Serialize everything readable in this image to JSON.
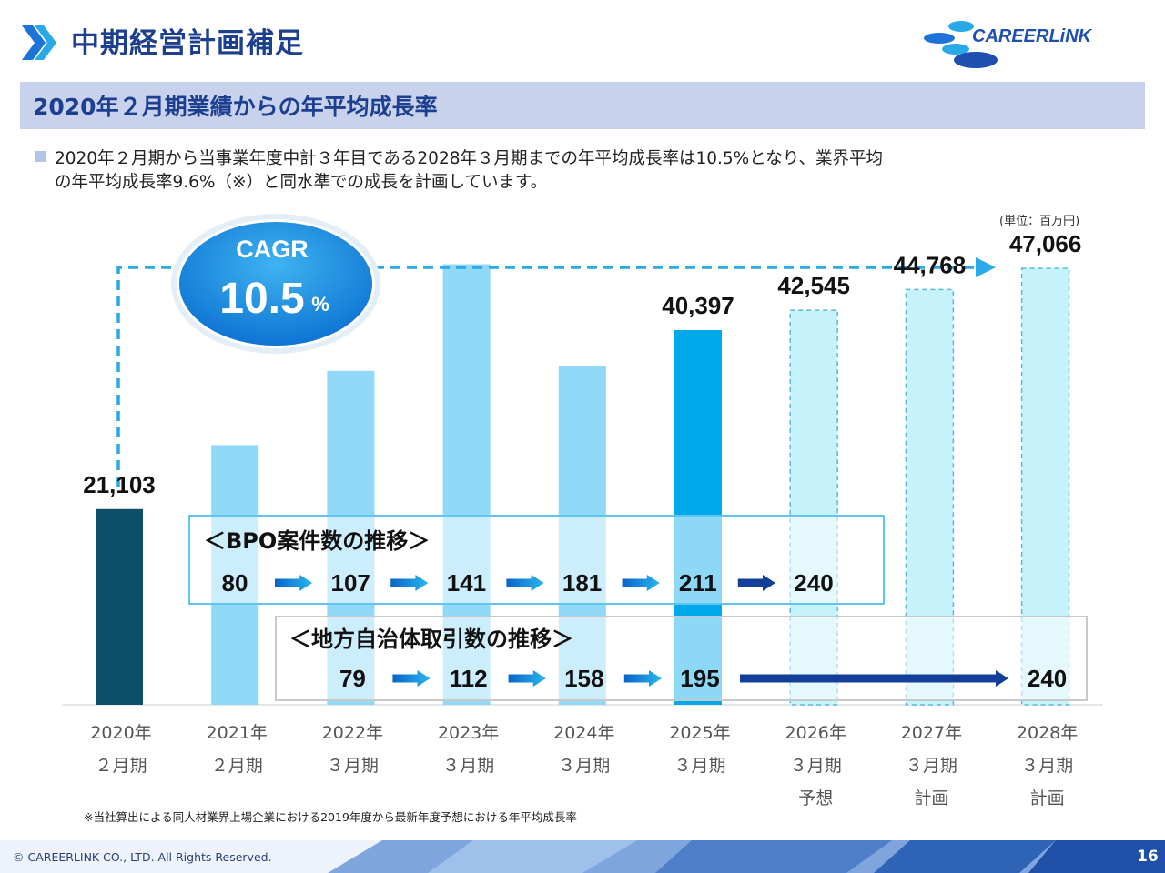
{
  "header": {
    "title": "中期経営計画補足",
    "subtitle": "2020年２月期業績からの年平均成長率",
    "logo_text": "CAREERLiNK"
  },
  "description": {
    "line1": "2020年２月期から当事業年度中計３年目である2028年３月期までの年平均成長率は10.5%となり、業界平均",
    "line2": "の年平均成長率9.6%（※）と同水準での成長を計画しています。"
  },
  "unit_label": "(単位：百万円)",
  "cagr": {
    "label": "CAGR",
    "value": "10.5",
    "suffix": "%"
  },
  "chart_data": {
    "type": "bar",
    "unit": "百万円",
    "categories": [
      [
        "2020年",
        "２月期"
      ],
      [
        "2021年",
        "２月期"
      ],
      [
        "2022年",
        "３月期"
      ],
      [
        "2023年",
        "３月期"
      ],
      [
        "2024年",
        "３月期"
      ],
      [
        "2025年",
        "３月期"
      ],
      [
        "2026年",
        "３月期",
        "予想"
      ],
      [
        "2027年",
        "３月期",
        "計画"
      ],
      [
        "2028年",
        "３月期",
        "計画"
      ]
    ],
    "values": [
      21103,
      28000,
      36000,
      47500,
      36500,
      40397,
      42545,
      44768,
      47066
    ],
    "value_labels": [
      "21,103",
      "",
      "",
      "",
      "",
      "40,397",
      "42,545",
      "44,768",
      "47,066"
    ],
    "kinds": [
      "base",
      "faded",
      "faded",
      "faded",
      "faded",
      "actual",
      "plan",
      "plan",
      "plan"
    ],
    "ylim": [
      0,
      50000
    ],
    "colors": {
      "base": "#0d4f6b",
      "faded": "#8fd8f8",
      "actual": "#00a9ea",
      "plan": "#c5f2fb"
    }
  },
  "bpo": {
    "title": "＜BPO案件数の推移＞",
    "values": [
      "80",
      "107",
      "141",
      "181",
      "211",
      "240"
    ]
  },
  "local_gov": {
    "title": "＜地方自治体取引数の推移＞",
    "values": [
      "79",
      "112",
      "158",
      "195",
      "240"
    ]
  },
  "footnote": "※当社算出による同人材業界上場企業における2019年度から最新年度予想における年平均成長率",
  "footer": {
    "copyright": "© CAREERLINK CO., LTD. All Rights Reserved.",
    "page_number": "16"
  }
}
